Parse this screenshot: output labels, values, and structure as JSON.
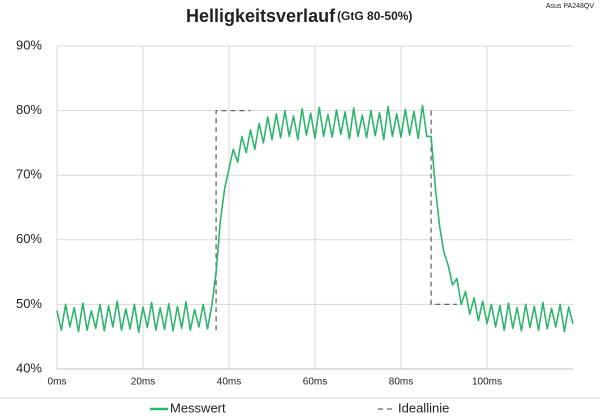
{
  "chart_data": {
    "type": "line",
    "title": "Helligkeitsverlauf",
    "subtitle": "(GtG 80-50%)",
    "source": "Asus PA248QV",
    "xlim": [
      0,
      120
    ],
    "xticks": [
      {
        "value": 0,
        "label": "0ms"
      },
      {
        "value": 20,
        "label": "20ms"
      },
      {
        "value": 40,
        "label": "40ms"
      },
      {
        "value": 60,
        "label": "60ms"
      },
      {
        "value": 80,
        "label": "80ms"
      },
      {
        "value": 100,
        "label": "100ms"
      }
    ],
    "ylim": [
      40,
      90
    ],
    "yticks": [
      {
        "value": 40,
        "label": "40%"
      },
      {
        "value": 50,
        "label": "50%"
      },
      {
        "value": 60,
        "label": "60%"
      },
      {
        "value": 70,
        "label": "70%"
      },
      {
        "value": 80,
        "label": "80%"
      },
      {
        "value": 90,
        "label": "90%"
      }
    ],
    "grid": true,
    "legend": "bottom",
    "series": [
      {
        "name": "Messwert",
        "color": "#2eb56c",
        "dash": false,
        "x": [
          0,
          1,
          2,
          3,
          4,
          5,
          6,
          7,
          8,
          9,
          10,
          11,
          12,
          13,
          14,
          15,
          16,
          17,
          18,
          19,
          20,
          21,
          22,
          23,
          24,
          25,
          26,
          27,
          28,
          29,
          30,
          31,
          32,
          33,
          34,
          35,
          36,
          37,
          38,
          39,
          40,
          41,
          42,
          43,
          44,
          45,
          46,
          47,
          48,
          49,
          50,
          51,
          52,
          53,
          54,
          55,
          56,
          57,
          58,
          59,
          60,
          61,
          62,
          63,
          64,
          65,
          66,
          67,
          68,
          69,
          70,
          71,
          72,
          73,
          74,
          75,
          76,
          77,
          78,
          79,
          80,
          81,
          82,
          83,
          84,
          85,
          86,
          87,
          88,
          89,
          90,
          91,
          92,
          93,
          94,
          95,
          96,
          97,
          98,
          99,
          100,
          101,
          102,
          103,
          104,
          105,
          106,
          107,
          108,
          109,
          110,
          111,
          112,
          113,
          114,
          115,
          116,
          117,
          118,
          119,
          120
        ],
        "values": [
          49,
          46,
          50,
          46.5,
          49.5,
          45.8,
          50.2,
          46,
          49,
          46.3,
          50,
          45.9,
          49.8,
          46.5,
          50.5,
          46,
          49.3,
          46.2,
          50,
          45.7,
          49.6,
          46.4,
          50.3,
          46,
          49.5,
          46.1,
          50.1,
          45.9,
          49.7,
          46.3,
          50.4,
          46,
          49.2,
          46.5,
          50,
          46.2,
          49.8,
          55,
          63,
          68,
          71,
          74,
          72,
          76,
          73.5,
          77,
          74,
          78,
          75,
          79,
          75.5,
          79.5,
          75.8,
          80,
          76,
          79.2,
          75.5,
          80.3,
          76.2,
          79.6,
          75.7,
          80.5,
          76,
          79.4,
          75.9,
          80.1,
          76.3,
          79.8,
          75.6,
          80.4,
          76,
          79.3,
          75.8,
          80,
          76.1,
          79.7,
          75.5,
          80.6,
          76,
          79.5,
          75.9,
          80.2,
          76.2,
          79.9,
          75.7,
          80.8,
          76,
          76,
          68,
          62,
          58,
          56,
          53,
          54,
          50,
          52,
          48.5,
          51,
          47.5,
          50.5,
          47,
          50,
          46.5,
          49.8,
          46,
          50.2,
          46.3,
          49.5,
          45.9,
          50,
          46.4,
          49.7,
          46,
          50.3,
          46.2,
          49.4,
          46.5,
          50,
          45.8,
          49.6,
          47
        ]
      },
      {
        "name": "Ideallinie",
        "color": "#666666",
        "dash": true,
        "x": [
          37,
          37,
          45,
          46,
          87,
          87,
          93
        ],
        "values": [
          46,
          80,
          80,
          null,
          80,
          50,
          50
        ]
      }
    ]
  }
}
